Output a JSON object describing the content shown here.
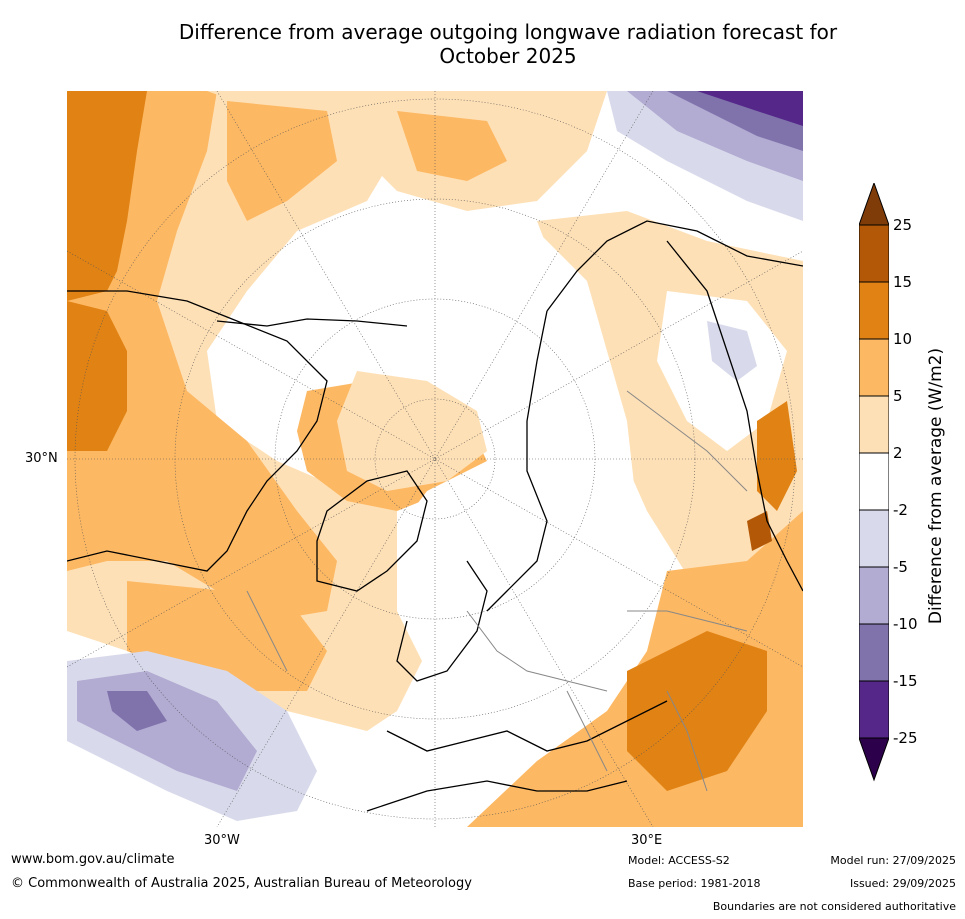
{
  "title_line1": "Difference from average outgoing longwave radiation forecast for",
  "title_line2": "October 2025",
  "map": {
    "lat_label": "30°N",
    "lon_label_west": "30°W",
    "lon_label_east": "30°E"
  },
  "colorbar": {
    "label": "Difference from average (W/m2)",
    "ticks": [
      "25",
      "15",
      "10",
      "5",
      "2",
      "-2",
      "-5",
      "-10",
      "-15",
      "-25"
    ],
    "colors": {
      "above_25": "#7f3b08",
      "15_25": "#b35806",
      "10_15": "#e08214",
      "5_10": "#fdb863",
      "2_5": "#fee0b6",
      "-2_2": "#ffffff",
      "-5_-2": "#d8daeb",
      "-10_-5": "#b2abd2",
      "-15_-10": "#8073ac",
      "-25_-15": "#542788",
      "below_-25": "#2d004b"
    }
  },
  "footer": {
    "website": "www.bom.gov.au/climate",
    "copyright": "© Commonwealth of Australia 2025, Australian Bureau of Meteorology",
    "model": "Model: ACCESS-S2",
    "base_period": "Base period: 1981-2018",
    "model_run": "Model run: 27/09/2025",
    "issued": "Issued: 29/09/2025",
    "disclaimer": "Boundaries are not considered authoritative"
  }
}
